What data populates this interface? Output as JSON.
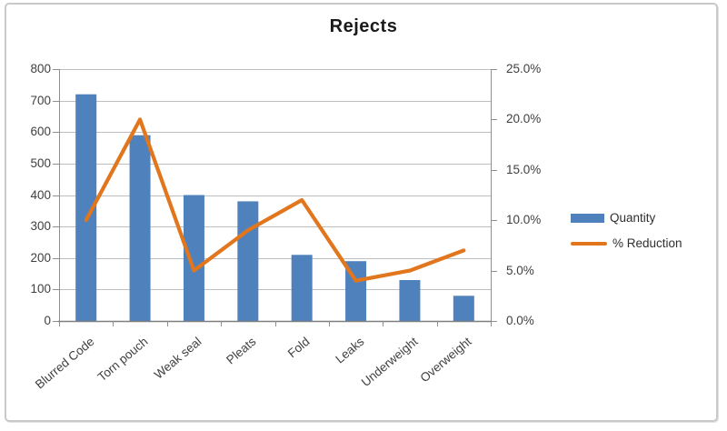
{
  "chart_data": {
    "type": "combo-bar-line",
    "title": "Rejects",
    "categories": [
      "Blurred Code",
      "Torn pouch",
      "Weak seal",
      "Pleats",
      "Fold",
      "Leaks",
      "Underweight",
      "Overweight"
    ],
    "series": [
      {
        "name": "Quantity",
        "type": "bar",
        "axis": "left",
        "color": "#4F81BD",
        "values": [
          720,
          590,
          400,
          380,
          210,
          190,
          130,
          80
        ]
      },
      {
        "name": "% Reduction",
        "type": "line",
        "axis": "right",
        "color": "#E2761D",
        "unit": "%",
        "values": [
          10,
          20,
          5,
          9,
          12,
          4,
          5,
          7
        ]
      }
    ],
    "left_axis": {
      "min": 0,
      "max": 800,
      "step": 100,
      "tick_labels": [
        "800",
        "700",
        "600",
        "500",
        "400",
        "300",
        "200",
        "100",
        "0"
      ]
    },
    "right_axis": {
      "min": 0,
      "max": 25,
      "step": 5,
      "tick_labels": [
        "25.0%",
        "20.0%",
        "15.0%",
        "10.0%",
        "5.0%",
        "0.0%"
      ]
    },
    "legend": {
      "position": "right-middle",
      "entries": [
        "Quantity",
        "% Reduction"
      ]
    },
    "grid": true,
    "xlabel": "",
    "ylabel_left": "",
    "ylabel_right": ""
  }
}
